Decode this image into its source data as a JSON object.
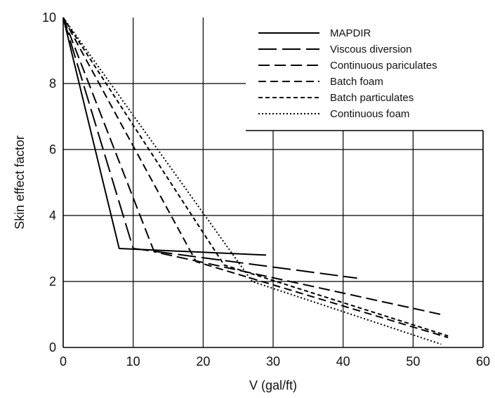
{
  "chart_data": {
    "type": "line",
    "title": "",
    "xlabel": "V (gal/ft)",
    "ylabel": "Skin effect factor",
    "xlim": [
      0,
      60
    ],
    "ylim": [
      0,
      10
    ],
    "xticks": [
      0,
      10,
      20,
      30,
      40,
      50,
      60
    ],
    "yticks": [
      0,
      2,
      4,
      6,
      8,
      10
    ],
    "grid": true,
    "legend_position": "top-right",
    "series": [
      {
        "name": "MAPDIR",
        "style": "solid",
        "x": [
          0,
          8,
          29
        ],
        "y": [
          10,
          3,
          2.8
        ]
      },
      {
        "name": "Viscous diversion",
        "style": "long-dash",
        "x": [
          0,
          10,
          42
        ],
        "y": [
          10,
          3,
          2.1
        ]
      },
      {
        "name": "Continuous pariculates",
        "style": "medium-dash",
        "x": [
          0,
          13,
          54
        ],
        "y": [
          10,
          2.9,
          1
        ]
      },
      {
        "name": "Batch foam",
        "style": "dash",
        "x": [
          0,
          19,
          55
        ],
        "y": [
          10,
          2.6,
          0.3
        ]
      },
      {
        "name": "Batch particulates",
        "style": "short-dash",
        "x": [
          0,
          23,
          55
        ],
        "y": [
          10,
          2.5,
          0.35
        ]
      },
      {
        "name": "Continuous foam",
        "style": "dotted",
        "x": [
          0,
          27,
          54
        ],
        "y": [
          10,
          2,
          0.1
        ]
      }
    ]
  }
}
